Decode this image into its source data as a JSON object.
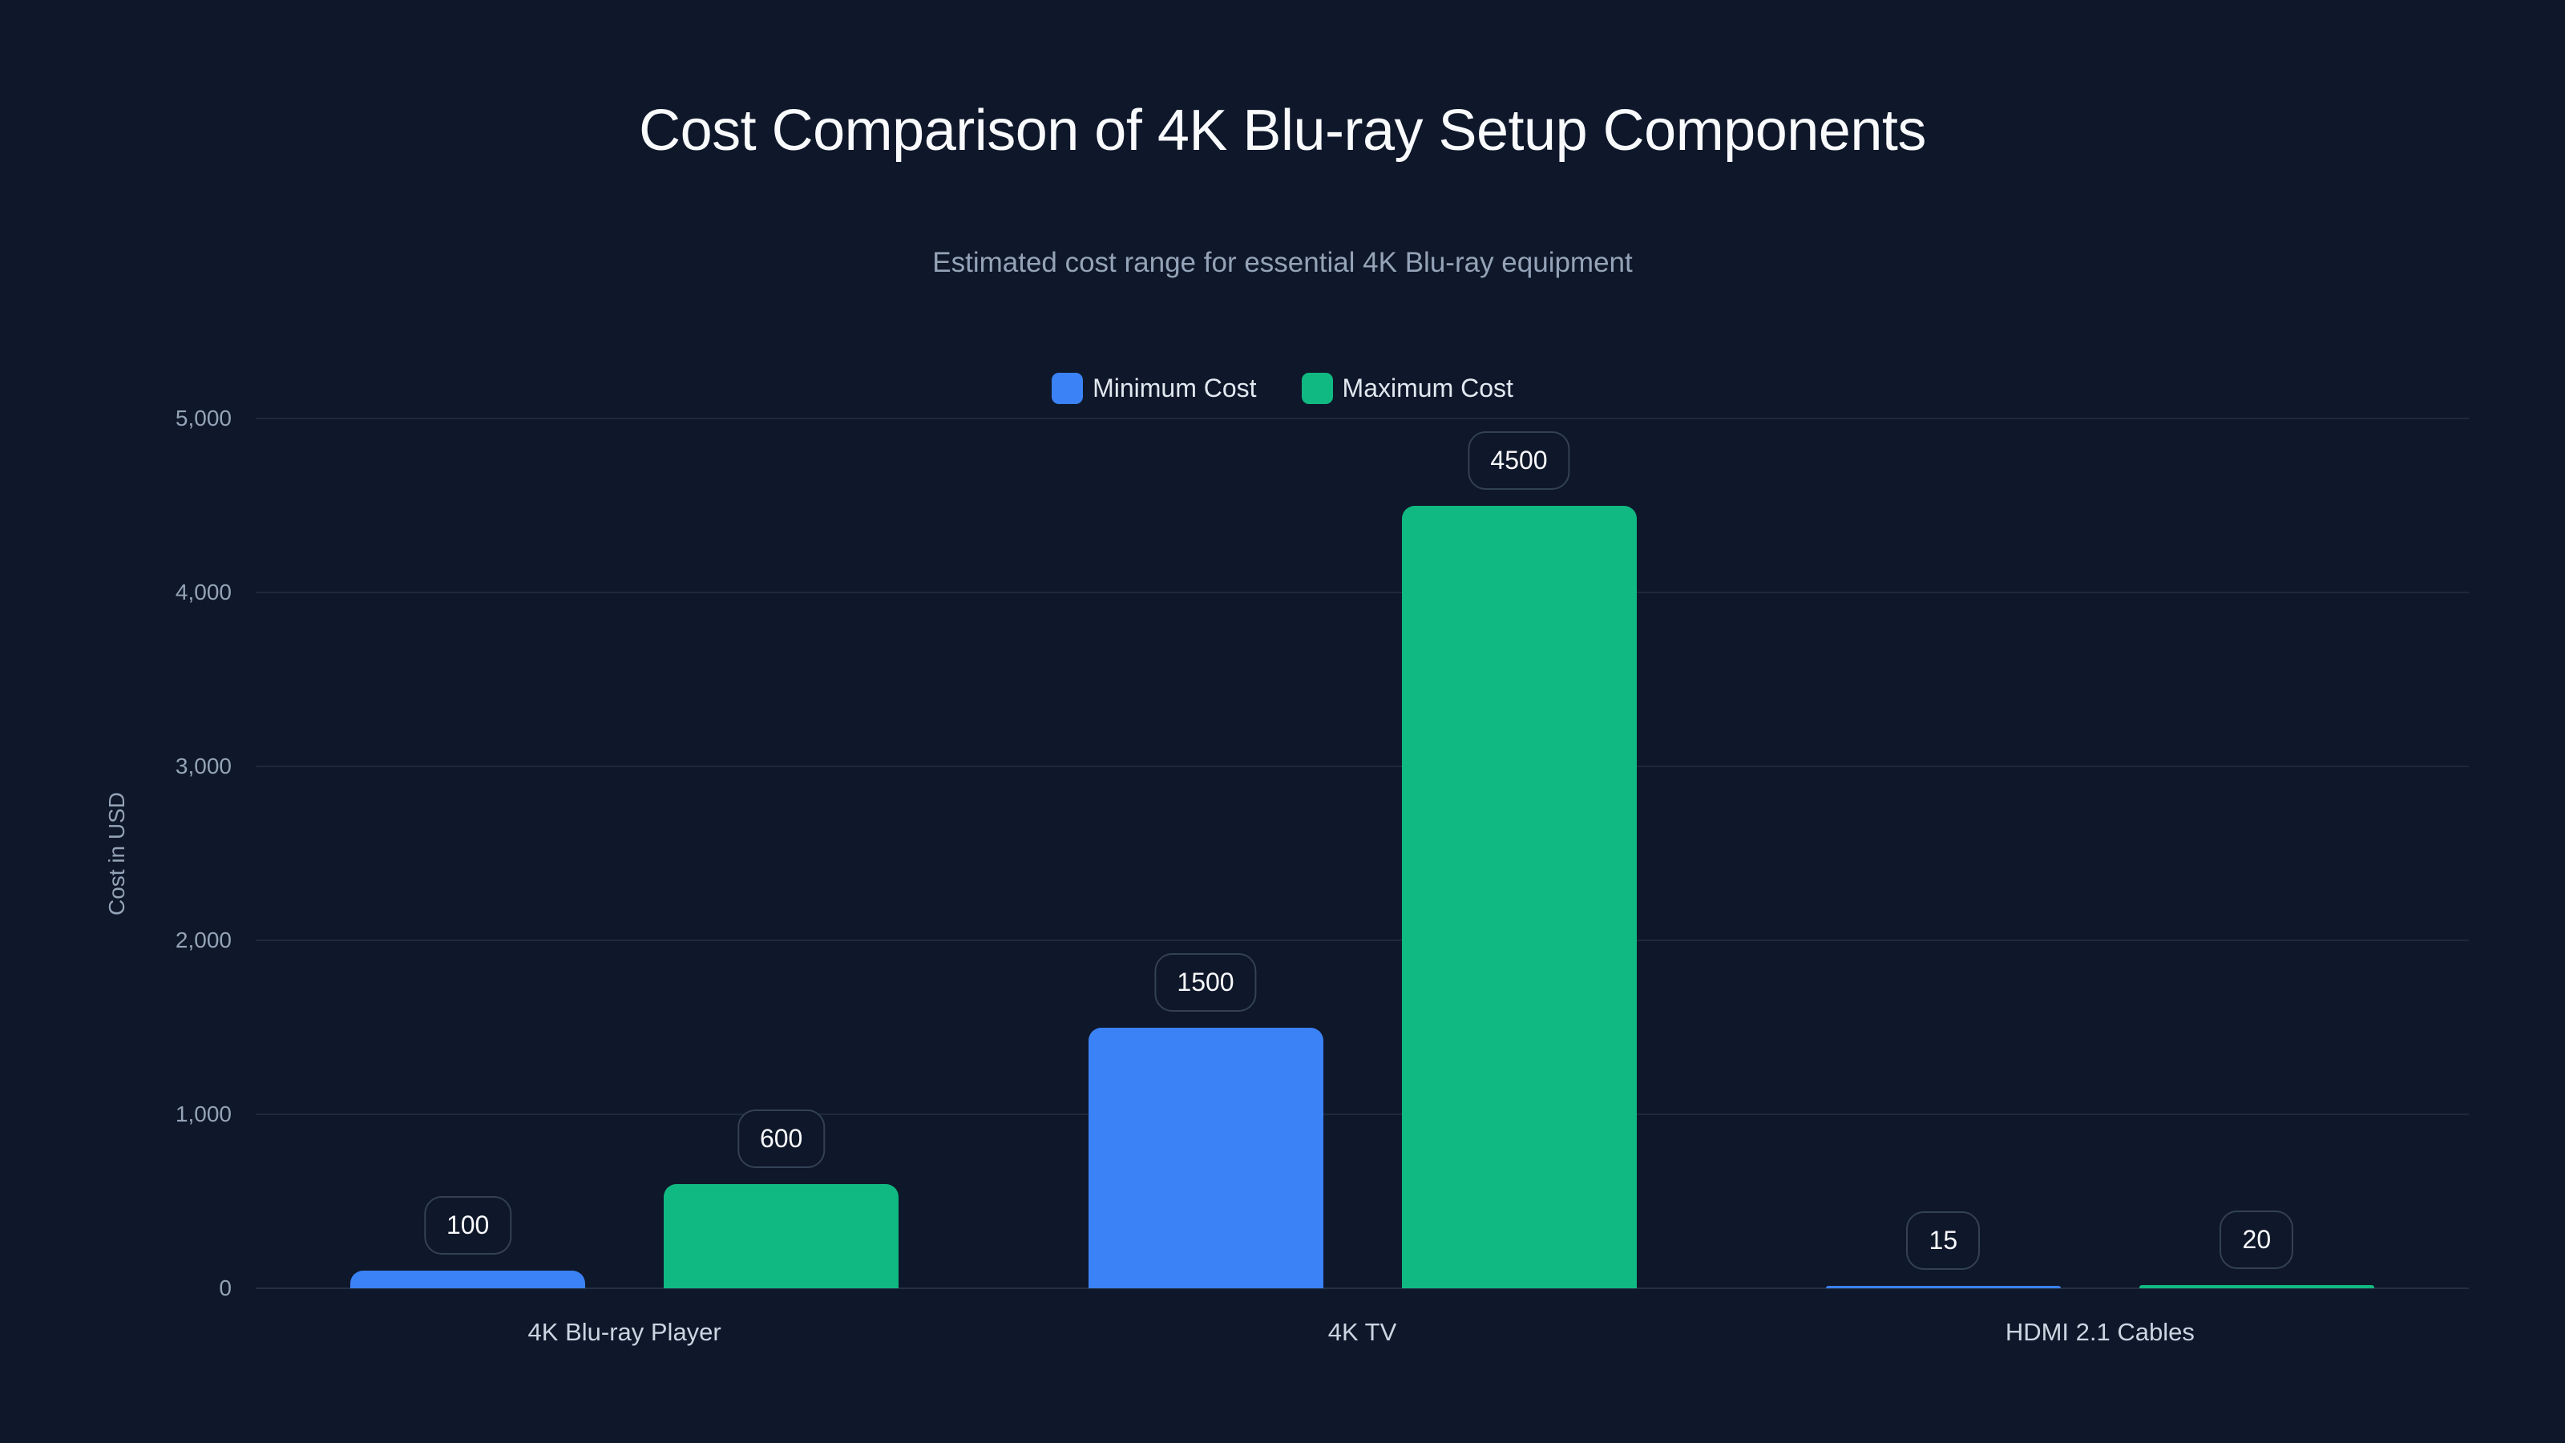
{
  "title": "Cost Comparison of 4K Blu-ray Setup Components",
  "subtitle": "Estimated cost range for essential 4K Blu-ray equipment",
  "legend": [
    {
      "label": "Minimum Cost",
      "color": "#3b82f6"
    },
    {
      "label": "Maximum Cost",
      "color": "#10b981"
    }
  ],
  "y_axis": {
    "title": "Cost in USD",
    "ticks": [
      "0",
      "1,000",
      "2,000",
      "3,000",
      "4,000",
      "5,000"
    ]
  },
  "x_axis": {
    "categories": [
      "4K Blu-ray Player",
      "4K TV",
      "HDMI 2.1 Cables"
    ]
  },
  "bar_labels": {
    "min": [
      "100",
      "1500",
      "15"
    ],
    "max": [
      "600",
      "4500",
      "20"
    ]
  },
  "chart_data": {
    "type": "bar",
    "title": "Cost Comparison of 4K Blu-ray Setup Components",
    "subtitle": "Estimated cost range for essential 4K Blu-ray equipment",
    "categories": [
      "4K Blu-ray Player",
      "4K TV",
      "HDMI 2.1 Cables"
    ],
    "series": [
      {
        "name": "Minimum Cost",
        "color": "#3b82f6",
        "values": [
          100,
          1500,
          15
        ]
      },
      {
        "name": "Maximum Cost",
        "color": "#10b981",
        "values": [
          600,
          4500,
          20
        ]
      }
    ],
    "xlabel": "",
    "ylabel": "Cost in USD",
    "ylim": [
      0,
      5000
    ],
    "yticks": [
      0,
      1000,
      2000,
      3000,
      4000,
      5000
    ],
    "grid": true,
    "legend_position": "top-center",
    "data_labels": true
  }
}
